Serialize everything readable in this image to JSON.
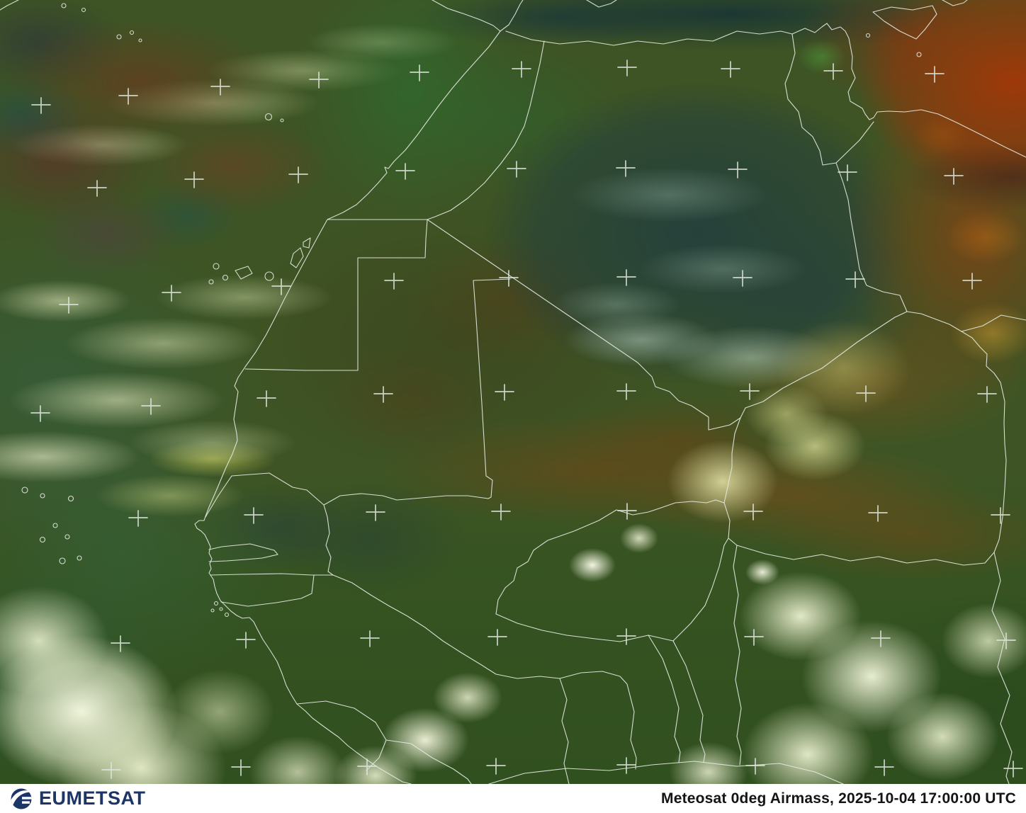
{
  "satellite_view": {
    "description": "Meteosat 0 degree Airmass RGB satellite scene over north-west Africa with coastlines, country borders and lat/lon graticule crosses",
    "graticule": {
      "cross_half_width": 13,
      "cross_half_up": 10,
      "cross_half_down": 12,
      "rows": [
        {
          "points": [
            [
              58,
              148
            ],
            [
              181,
              135
            ],
            [
              311,
              122
            ],
            [
              450,
              112
            ],
            [
              592,
              102
            ],
            [
              736,
              97
            ],
            [
              885,
              95
            ],
            [
              1031,
              97
            ],
            [
              1176,
              100
            ],
            [
              1319,
              104
            ]
          ]
        },
        {
          "points": [
            [
              137,
              265
            ],
            [
              274,
              253
            ],
            [
              421,
              246
            ],
            [
              572,
              241
            ],
            [
              729,
              238
            ],
            [
              883,
              237
            ],
            [
              1041,
              239
            ],
            [
              1196,
              243
            ],
            [
              1346,
              248
            ]
          ]
        },
        {
          "points": [
            [
              97,
              430
            ],
            [
              242,
              413
            ],
            [
              397,
              404
            ],
            [
              556,
              396
            ],
            [
              718,
              392
            ],
            [
              884,
              391
            ],
            [
              1048,
              392
            ],
            [
              1207,
              394
            ],
            [
              1372,
              396
            ]
          ]
        },
        {
          "points": [
            [
              57,
              583
            ],
            [
              213,
              573
            ],
            [
              376,
              562
            ],
            [
              541,
              556
            ],
            [
              712,
              553
            ],
            [
              884,
              552
            ],
            [
              1058,
              552
            ],
            [
              1222,
              555
            ],
            [
              1393,
              556
            ]
          ]
        },
        {
          "points": [
            [
              195,
              731
            ],
            [
              358,
              727
            ],
            [
              530,
              723
            ],
            [
              707,
              722
            ],
            [
              885,
              721
            ],
            [
              1063,
              722
            ],
            [
              1239,
              724
            ],
            [
              1412,
              727
            ]
          ]
        },
        {
          "points": [
            [
              170,
              908
            ],
            [
              347,
              903
            ],
            [
              522,
              901
            ],
            [
              702,
              899
            ],
            [
              884,
              898
            ],
            [
              1064,
              899
            ],
            [
              1243,
              901
            ],
            [
              1420,
              904
            ]
          ]
        },
        {
          "points": [
            [
              157,
              1087
            ],
            [
              340,
              1083
            ],
            [
              518,
              1082
            ],
            [
              700,
              1081
            ],
            [
              884,
              1080
            ],
            [
              1066,
              1081
            ],
            [
              1248,
              1083
            ],
            [
              1430,
              1085
            ]
          ]
        }
      ]
    }
  },
  "footer": {
    "logo_text": "EUMETSAT",
    "caption": "Meteosat 0deg Airmass, 2025-10-04 17:00:00 UTC"
  },
  "palette": {
    "base_land": "#3e5424",
    "bright_cloud": "#f6f8e4",
    "pale_cloud": "#d8dfa8",
    "dark_teal_airmass": "#24403c",
    "red_dust": "#a23708",
    "maroon_swirl": "#6c3820",
    "sahel_brown": "#784c19",
    "ocean_green": "#306448",
    "mediterranean": "#163236",
    "border_line": "#e3e9e0",
    "graticule": "#dfe6dd",
    "logo_navy": "#1b3566",
    "footer_bg": "#ffffff",
    "footer_text": "#141414"
  }
}
